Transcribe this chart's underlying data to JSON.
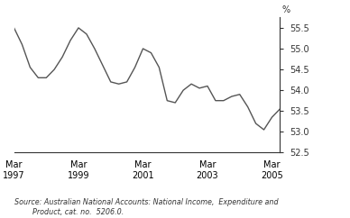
{
  "source_text": "Source: Australian National Accounts: National Income,  Expenditure and\n        Product, cat. no.  5206.0.",
  "ylim": [
    52.5,
    55.75
  ],
  "yticks": [
    52.5,
    53.0,
    53.5,
    54.0,
    54.5,
    55.0,
    55.5
  ],
  "ytick_labels": [
    "52.5",
    "53.0",
    "53.5",
    "54.0",
    "54.5",
    "55.0",
    "55.5"
  ],
  "xtick_labels": [
    "Mar\n1997",
    "Mar\n1999",
    "Mar\n2001",
    "Mar\n2003",
    "Mar\n2005"
  ],
  "xtick_positions": [
    0,
    8,
    16,
    24,
    32
  ],
  "line_color": "#555555",
  "line_width": 1.0,
  "x": [
    0,
    1,
    2,
    3,
    4,
    5,
    6,
    7,
    8,
    9,
    10,
    11,
    12,
    13,
    14,
    15,
    16,
    17,
    18,
    19,
    20,
    21,
    22,
    23,
    24,
    25,
    26,
    27,
    28,
    29,
    30,
    31,
    32,
    33
  ],
  "y": [
    55.5,
    55.1,
    54.55,
    54.3,
    54.3,
    54.5,
    54.8,
    55.2,
    55.5,
    55.35,
    55.0,
    54.6,
    54.2,
    54.15,
    54.2,
    54.55,
    55.0,
    54.9,
    54.55,
    53.75,
    53.7,
    54.0,
    54.15,
    54.05,
    54.1,
    53.75,
    53.75,
    53.85,
    53.9,
    53.6,
    53.2,
    53.05,
    53.35,
    53.55
  ],
  "percent_label": "%",
  "fig_width": 3.88,
  "fig_height": 2.42,
  "dpi": 100
}
